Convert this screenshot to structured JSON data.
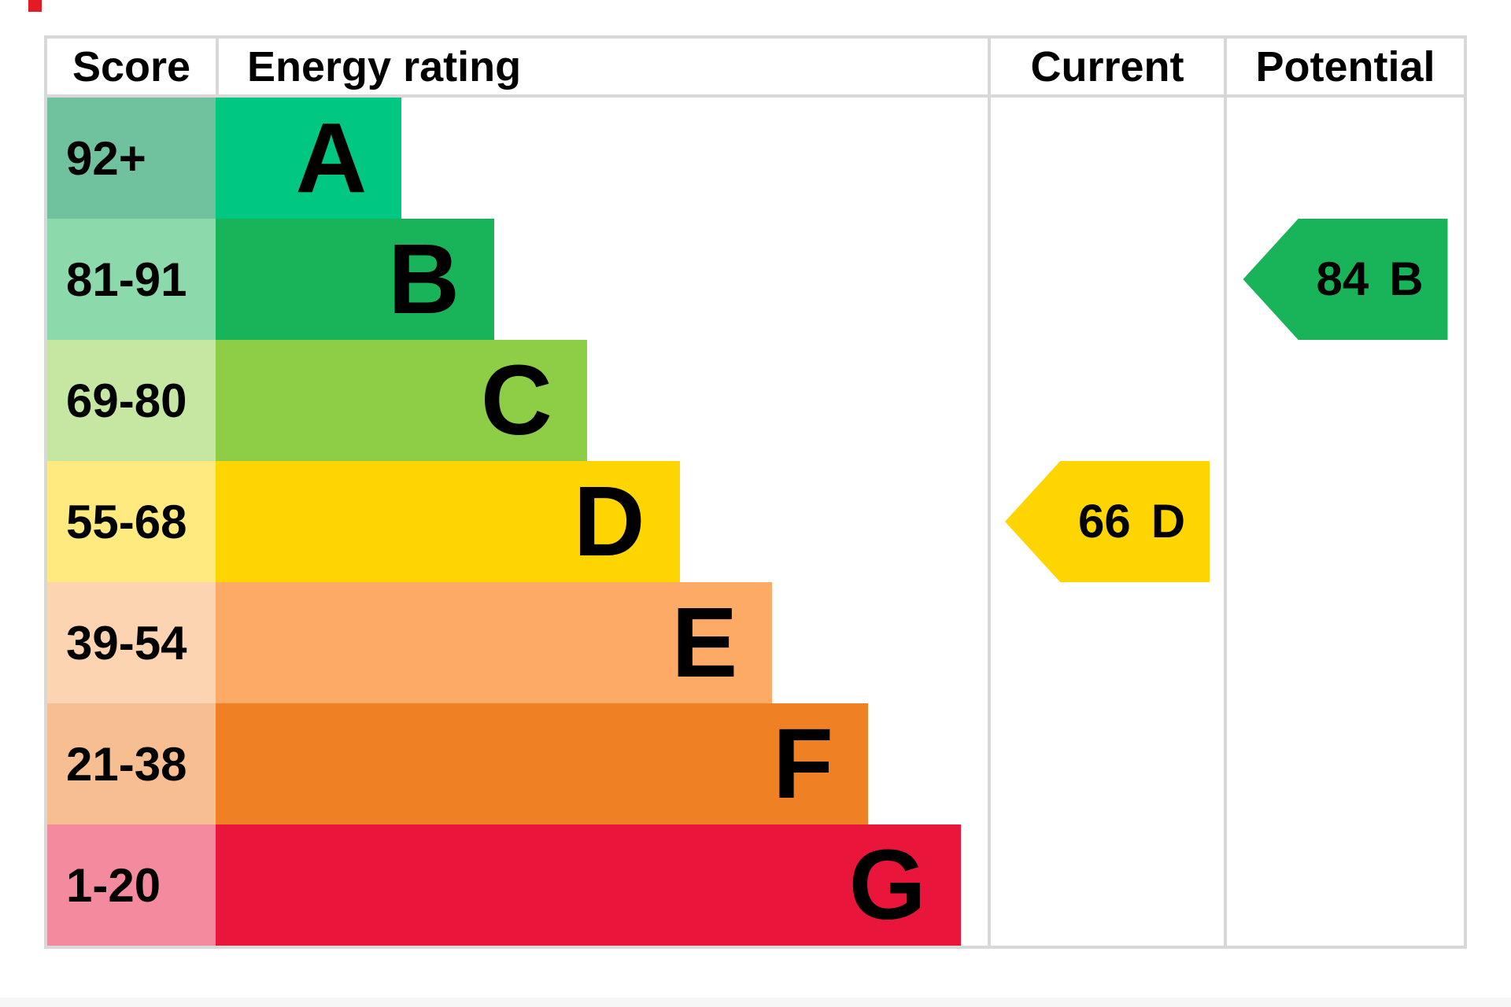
{
  "chart_data": {
    "type": "bar",
    "subtype": "epc-energy-rating-chart",
    "orientation": "horizontal",
    "columns": [
      "Score",
      "Energy rating",
      "Current",
      "Potential"
    ],
    "bands": [
      {
        "range": "92+",
        "letter": "A",
        "color": "#00c781",
        "tint": "#70c29e",
        "width_pct": 24.1
      },
      {
        "range": "81-91",
        "letter": "B",
        "color": "#19b459",
        "tint": "#8cd9ac",
        "width_pct": 36.1
      },
      {
        "range": "69-80",
        "letter": "C",
        "color": "#8dce46",
        "tint": "#c6e7a2",
        "width_pct": 48.1
      },
      {
        "range": "55-68",
        "letter": "D",
        "color": "#ffd500",
        "tint": "#ffea80",
        "width_pct": 60.1
      },
      {
        "range": "39-54",
        "letter": "E",
        "color": "#fcaa65",
        "tint": "#fdd4b2",
        "width_pct": 72.1
      },
      {
        "range": "21-38",
        "letter": "F",
        "color": "#ef8023",
        "tint": "#f7bf91",
        "width_pct": 84.5
      },
      {
        "range": "1-20",
        "letter": "G",
        "color": "#e9153b",
        "tint": "#f48a9d",
        "width_pct": 96.5
      }
    ],
    "markers": {
      "current": {
        "value": "66",
        "band": "D",
        "band_index": 3,
        "color": "#ffd500"
      },
      "potential": {
        "value": "84",
        "band": "B",
        "band_index": 1,
        "color": "#19b459"
      }
    },
    "legend_position": "none",
    "grid": "table-borders",
    "border_color": "#d8d8d8",
    "text_color": "#000000"
  }
}
